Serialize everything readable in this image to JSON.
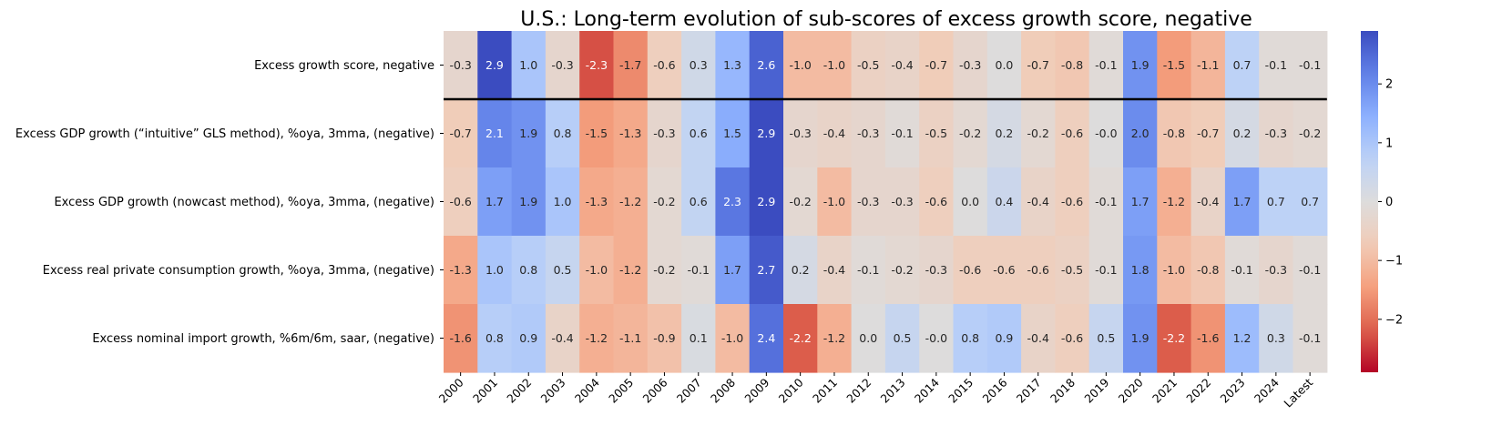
{
  "chart_data": {
    "type": "heatmap",
    "title": "U.S.: Long-term evolution of sub-scores of excess growth score, negative",
    "x_labels": [
      "2000",
      "2001",
      "2002",
      "2003",
      "2004",
      "2005",
      "2006",
      "2007",
      "2008",
      "2009",
      "2010",
      "2011",
      "2012",
      "2013",
      "2014",
      "2015",
      "2016",
      "2017",
      "2018",
      "2019",
      "2020",
      "2021",
      "2022",
      "2023",
      "2024",
      "Latest"
    ],
    "y_labels": [
      "Excess growth score, negative",
      "Excess GDP growth (“intuitive” GLS method), %oya, 3mma, (negative)",
      "Excess GDP growth (nowcast method), %oya, 3mma, (negative)",
      "Excess real private consumption growth, %oya, 3mma, (negative)",
      "Excess nominal import growth, %6m/6m, saar, (negative)"
    ],
    "values": [
      [
        -0.3,
        2.9,
        1.0,
        -0.3,
        -2.3,
        -1.7,
        -0.6,
        0.3,
        1.3,
        2.6,
        -1.0,
        -1.0,
        -0.5,
        -0.4,
        -0.7,
        -0.3,
        0.0,
        -0.7,
        -0.8,
        -0.1,
        1.9,
        -1.5,
        -1.1,
        0.7,
        -0.1,
        -0.1
      ],
      [
        -0.7,
        2.1,
        1.9,
        0.8,
        -1.5,
        -1.3,
        -0.3,
        0.6,
        1.5,
        2.9,
        -0.3,
        -0.4,
        -0.3,
        -0.1,
        -0.5,
        -0.2,
        0.2,
        -0.2,
        -0.6,
        -0.0,
        2.0,
        -0.8,
        -0.7,
        0.2,
        -0.3,
        -0.2
      ],
      [
        -0.6,
        1.7,
        1.9,
        1.0,
        -1.3,
        -1.2,
        -0.2,
        0.6,
        2.3,
        2.9,
        -0.2,
        -1.0,
        -0.3,
        -0.3,
        -0.6,
        0.0,
        0.4,
        -0.4,
        -0.6,
        -0.1,
        1.7,
        -1.2,
        -0.4,
        1.7,
        0.7,
        0.7
      ],
      [
        -1.3,
        1.0,
        0.8,
        0.5,
        -1.0,
        -1.2,
        -0.2,
        -0.1,
        1.7,
        2.7,
        0.2,
        -0.4,
        -0.1,
        -0.2,
        -0.3,
        -0.6,
        -0.6,
        -0.6,
        -0.5,
        -0.1,
        1.8,
        -1.0,
        -0.8,
        -0.1,
        -0.3,
        -0.1
      ],
      [
        -1.6,
        0.8,
        0.9,
        -0.4,
        -1.2,
        -1.1,
        -0.9,
        0.1,
        -1.0,
        2.4,
        -2.2,
        -1.2,
        0.0,
        0.5,
        -0.0,
        0.8,
        0.9,
        -0.4,
        -0.6,
        0.5,
        1.9,
        -2.2,
        -1.6,
        1.2,
        0.3,
        -0.1
      ]
    ],
    "value_labels": [
      [
        "-0.3",
        "2.9",
        "1.0",
        "-0.3",
        "-2.3",
        "-1.7",
        "-0.6",
        "0.3",
        "1.3",
        "2.6",
        "-1.0",
        "-1.0",
        "-0.5",
        "-0.4",
        "-0.7",
        "-0.3",
        "0.0",
        "-0.7",
        "-0.8",
        "-0.1",
        "1.9",
        "-1.5",
        "-1.1",
        "0.7",
        "-0.1",
        "-0.1"
      ],
      [
        "-0.7",
        "2.1",
        "1.9",
        "0.8",
        "-1.5",
        "-1.3",
        "-0.3",
        "0.6",
        "1.5",
        "2.9",
        "-0.3",
        "-0.4",
        "-0.3",
        "-0.1",
        "-0.5",
        "-0.2",
        "0.2",
        "-0.2",
        "-0.6",
        "-0.0",
        "2.0",
        "-0.8",
        "-0.7",
        "0.2",
        "-0.3",
        "-0.2"
      ],
      [
        "-0.6",
        "1.7",
        "1.9",
        "1.0",
        "-1.3",
        "-1.2",
        "-0.2",
        "0.6",
        "2.3",
        "2.9",
        "-0.2",
        "-1.0",
        "-0.3",
        "-0.3",
        "-0.6",
        "0.0",
        "0.4",
        "-0.4",
        "-0.6",
        "-0.1",
        "1.7",
        "-1.2",
        "-0.4",
        "1.7",
        "0.7",
        "0.7"
      ],
      [
        "-1.3",
        "1.0",
        "0.8",
        "0.5",
        "-1.0",
        "-1.2",
        "-0.2",
        "-0.1",
        "1.7",
        "2.7",
        "0.2",
        "-0.4",
        "-0.1",
        "-0.2",
        "-0.3",
        "-0.6",
        "-0.6",
        "-0.6",
        "-0.5",
        "-0.1",
        "1.8",
        "-1.0",
        "-0.8",
        "-0.1",
        "-0.3",
        "-0.1"
      ],
      [
        "-1.6",
        "0.8",
        "0.9",
        "-0.4",
        "-1.2",
        "-1.1",
        "-0.9",
        "0.1",
        "-1.0",
        "2.4",
        "-2.2",
        "-1.2",
        "0.0",
        "0.5",
        "-0.0",
        "0.8",
        "0.9",
        "-0.4",
        "-0.6",
        "0.5",
        "1.9",
        "-2.2",
        "-1.6",
        "1.2",
        "0.3",
        "-0.1"
      ]
    ],
    "colormap": "coolwarm_r",
    "vmin": -2.9,
    "vmax": 2.9,
    "separator_after_row": 0,
    "colorbar_ticks": [
      -2,
      -1,
      0,
      1,
      2
    ],
    "colorbar_tick_labels": [
      "−2",
      "−1",
      "0",
      "1",
      "2"
    ],
    "grid": false
  }
}
